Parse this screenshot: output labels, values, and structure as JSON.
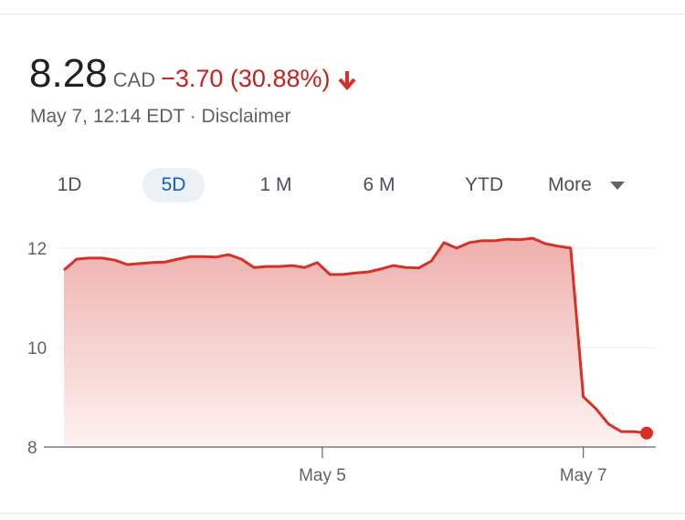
{
  "quote": {
    "price": "8.28",
    "currency": "CAD",
    "change": "−3.70 (30.88%)",
    "direction_icon": "arrow-down-icon",
    "timestamp": "May 7, 12:14 EDT",
    "separator": " · ",
    "disclaimer": "Disclaimer"
  },
  "tabs": [
    {
      "label": "1D"
    },
    {
      "label": "5D",
      "selected": true
    },
    {
      "label": "1 M"
    },
    {
      "label": "6 M"
    },
    {
      "label": "YTD"
    },
    {
      "label": "More",
      "icon": "caret-down-icon"
    }
  ],
  "colors": {
    "line": "#d93025",
    "change": "#c5221f",
    "selected_tab": "#1a5fb4"
  },
  "chart_data": {
    "type": "area",
    "ylim": [
      8,
      12.3
    ],
    "y_ticks": [
      {
        "value": 12,
        "label": "12"
      },
      {
        "value": 10,
        "label": "10"
      },
      {
        "value": 8,
        "label": "8"
      }
    ],
    "x_ticks": [
      {
        "label": "May 5",
        "index": 20.4
      },
      {
        "label": "May 7",
        "index": 41
      }
    ],
    "grid": true,
    "values": [
      11.56,
      11.78,
      11.8,
      11.8,
      11.76,
      11.67,
      11.69,
      11.71,
      11.72,
      11.78,
      11.83,
      11.83,
      11.82,
      11.87,
      11.78,
      11.61,
      11.63,
      11.63,
      11.65,
      11.61,
      11.71,
      11.47,
      11.47,
      11.5,
      11.52,
      11.58,
      11.65,
      11.61,
      11.6,
      11.74,
      12.11,
      12.0,
      12.11,
      12.15,
      12.15,
      12.18,
      12.17,
      12.2,
      12.09,
      12.04,
      12.0,
      9.01,
      8.77,
      8.46,
      8.31,
      8.31,
      8.28
    ]
  }
}
